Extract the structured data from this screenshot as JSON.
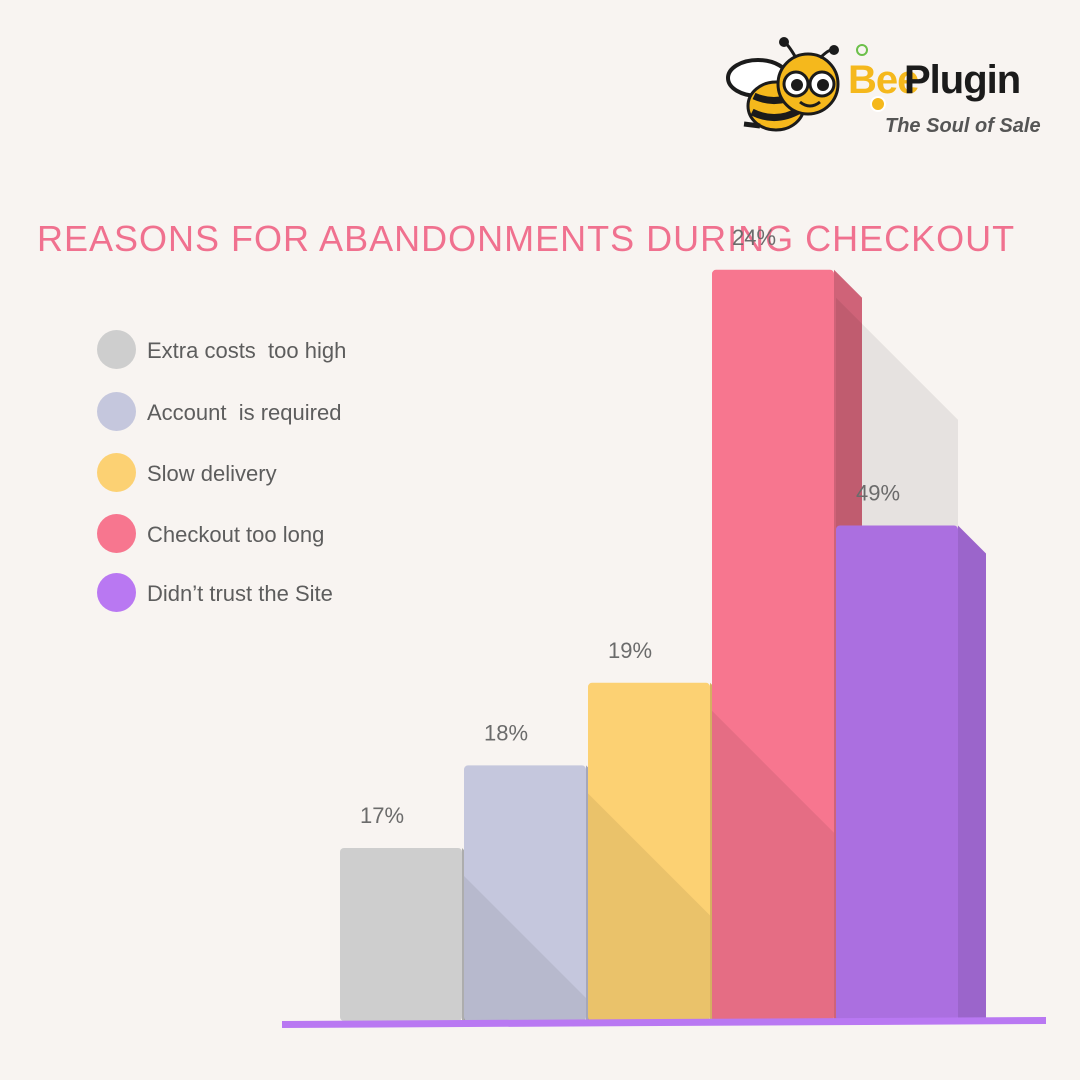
{
  "brand": {
    "name_part1": "Bee",
    "name_part2": "Plugin",
    "tagline": "The Soul of Sale"
  },
  "chart_data": {
    "type": "bar",
    "title": "REASONS FOR ABANDONMENTS DURING CHECKOUT",
    "categories": [
      "Extra costs  too high",
      "Account  is required",
      "Slow delivery",
      "Checkout too long",
      "Didn’t trust the Site"
    ],
    "values": [
      17,
      18,
      19,
      24,
      49
    ],
    "data_labels": [
      "17%",
      "18%",
      "19%",
      "24%",
      "49%"
    ],
    "unit": "%",
    "legend_position": "left",
    "grid": false,
    "colors": [
      "#cecece",
      "#c5c7dd",
      "#fcd173",
      "#f7768f",
      "#b978f2"
    ],
    "axis_color": "#b978f2"
  }
}
